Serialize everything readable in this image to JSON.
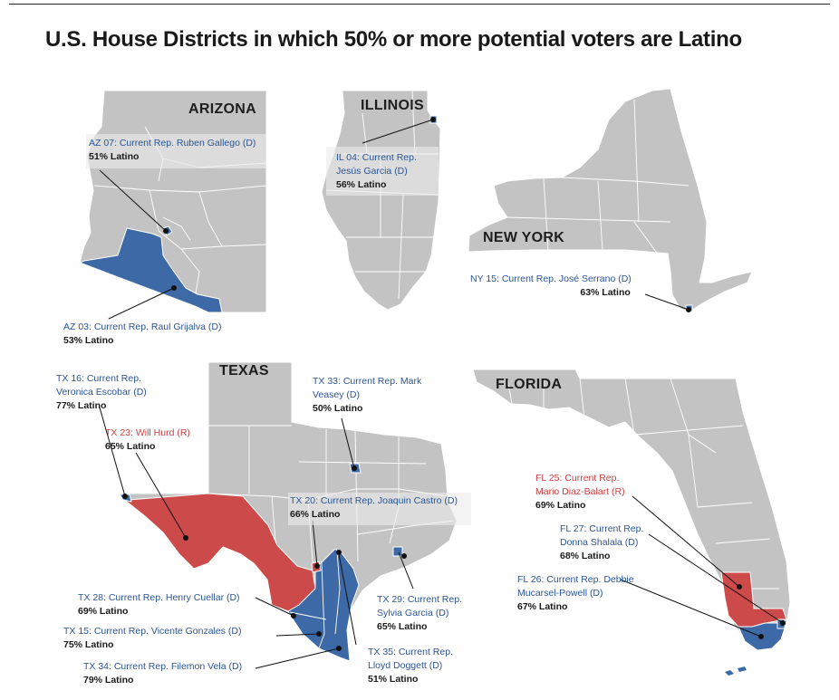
{
  "title": "U.S. House Districts in which 50% or more potential voters are Latino",
  "colors": {
    "state_fill": "#c3c3c3",
    "district_lines": "#ffffff",
    "democrat": "#3d6aa6",
    "republican": "#cc4a4a",
    "text": "#1a1a1a"
  },
  "states": {
    "arizona": "ARIZONA",
    "illinois": "ILLINOIS",
    "new_york": "NEW YORK",
    "texas": "TEXAS",
    "florida": "FLORIDA"
  },
  "districts": {
    "az07": {
      "name": "AZ 07: Current Rep. Ruben Gallego (D)",
      "pct": "51% Latino",
      "party": "D"
    },
    "az03": {
      "name": "AZ 03: Current Rep. Raul Grijalva (D)",
      "pct": "53% Latino",
      "party": "D"
    },
    "il04": {
      "name1": "IL 04: Current Rep.",
      "name2": "Jesús Garcia (D)",
      "pct": "56% Latino",
      "party": "D"
    },
    "ny15": {
      "name": "NY 15: Current Rep. José Serrano (D)",
      "pct": "63% Latino",
      "party": "D"
    },
    "tx16": {
      "name1": "TX 16: Current Rep.",
      "name2": "Veronica Escobar (D)",
      "pct": "77% Latino",
      "party": "D"
    },
    "tx23": {
      "name": "TX 23: Will Hurd (R)",
      "pct": "65% Latino",
      "party": "R"
    },
    "tx33": {
      "name1": "TX 33: Current Rep. Mark",
      "name2": "Veasey (D)",
      "pct": "50% Latino",
      "party": "D"
    },
    "tx20": {
      "name": "TX 20: Current Rep. Joaquin Castro (D)",
      "pct": "66% Latino",
      "party": "D"
    },
    "tx28": {
      "name": "TX 28: Current Rep. Henry Cuellar (D)",
      "pct": "69% Latino",
      "party": "D"
    },
    "tx29": {
      "name1": "TX 29: Current Rep.",
      "name2": "Sylvia Garcia (D)",
      "pct": "65% Latino",
      "party": "D"
    },
    "tx15": {
      "name": "TX 15: Current Rep. Vicente Gonzales (D)",
      "pct": "75% Latino",
      "party": "D"
    },
    "tx35": {
      "name1": "TX 35: Current Rep.",
      "name2": "Lloyd Doggett (D)",
      "pct": "51% Latino",
      "party": "D"
    },
    "tx34": {
      "name": "TX 34: Current Rep. Filemon Vela (D)",
      "pct": "79% Latino",
      "party": "D"
    },
    "fl25": {
      "name1": "FL 25: Current Rep.",
      "name2": "Mario Diaz-Balart (R)",
      "pct": "69% Latino",
      "party": "R"
    },
    "fl27": {
      "name1": "FL 27: Current Rep.",
      "name2": "Donna Shalala (D)",
      "pct": "68% Latino",
      "party": "D"
    },
    "fl26": {
      "name1": "FL 26: Current Rep. Debbie",
      "name2": "Mucarsel-Powell (D)",
      "pct": "67% Latino",
      "party": "D"
    }
  }
}
